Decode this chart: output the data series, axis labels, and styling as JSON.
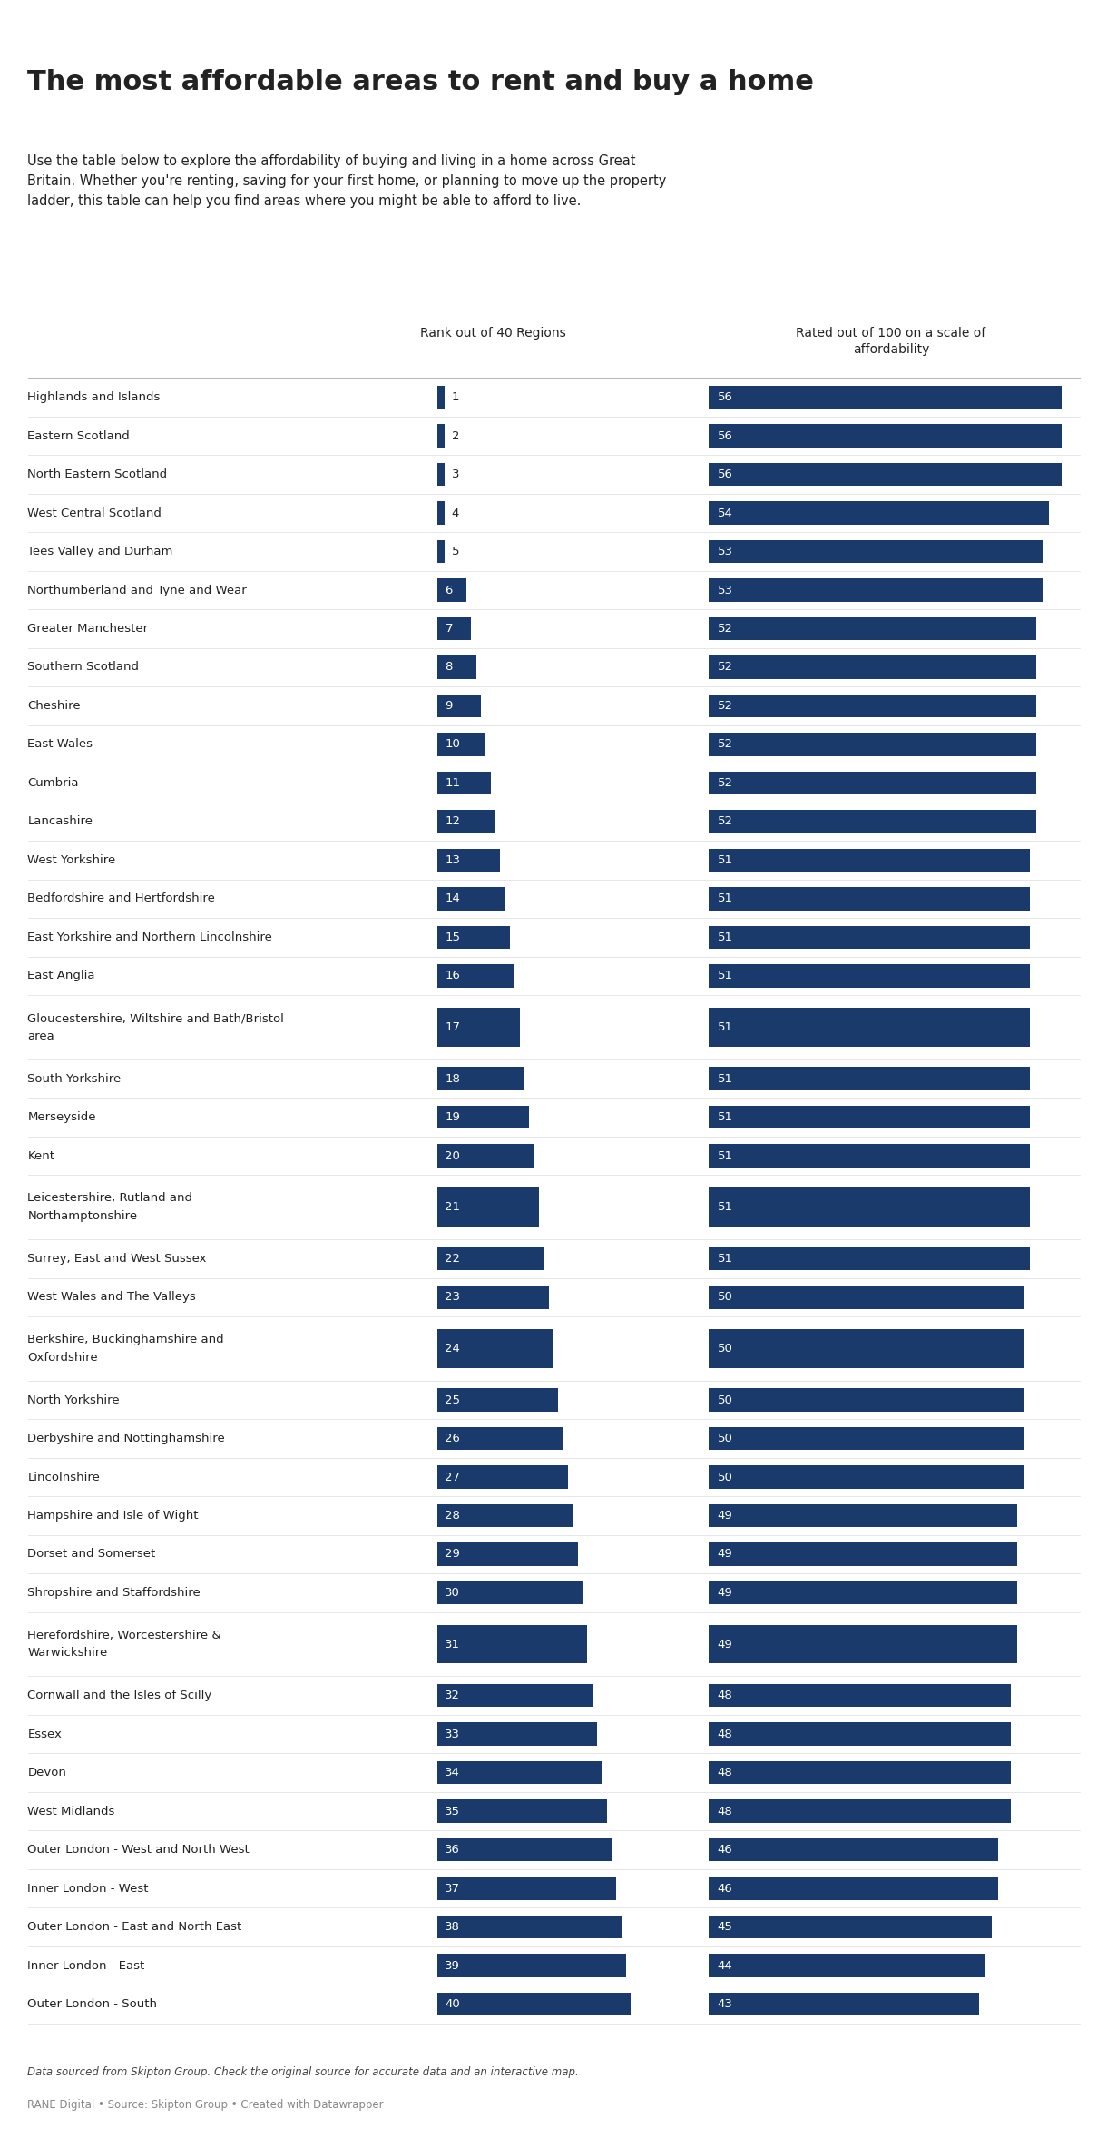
{
  "title": "The most affordable areas to rent and buy a home",
  "subtitle": "Use the table below to explore the affordability of buying and living in a home across Great\nBritain. Whether you're renting, saving for your first home, or planning to move up the property\nladder, this table can help you find areas where you might be able to afford to live.",
  "col1_header": "Rank out of 40 Regions",
  "col2_header": "Rated out of 100 on a scale of\naffordability",
  "footer_line1": "Data sourced from Skipton Group. Check the original source for accurate data and an interactive map.",
  "footer_line2": "RANE Digital • Source: Skipton Group • Created with Datawrapper",
  "bar_color": "#1a3a6b",
  "text_color": "#222222",
  "bg_color": "#ffffff",
  "regions": [
    "Highlands and Islands",
    "Eastern Scotland",
    "North Eastern Scotland",
    "West Central Scotland",
    "Tees Valley and Durham",
    "Northumberland and Tyne and Wear",
    "Greater Manchester",
    "Southern Scotland",
    "Cheshire",
    "East Wales",
    "Cumbria",
    "Lancashire",
    "West Yorkshire",
    "Bedfordshire and Hertfordshire",
    "East Yorkshire and Northern Lincolnshire",
    "East Anglia",
    "Gloucestershire, Wiltshire and Bath/Bristol\narea",
    "South Yorkshire",
    "Merseyside",
    "Kent",
    "Leicestershire, Rutland and\nNorthamptonshire",
    "Surrey, East and West Sussex",
    "West Wales and The Valleys",
    "Berkshire, Buckinghamshire and\nOxfordshire",
    "North Yorkshire",
    "Derbyshire and Nottinghamshire",
    "Lincolnshire",
    "Hampshire and Isle of Wight",
    "Dorset and Somerset",
    "Shropshire and Staffordshire",
    "Herefordshire, Worcestershire &\nWarwickshire",
    "Cornwall and the Isles of Scilly",
    "Essex",
    "Devon",
    "West Midlands",
    "Outer London - West and North West",
    "Inner London - West",
    "Outer London - East and North East",
    "Inner London - East",
    "Outer London - South"
  ],
  "ranks": [
    1,
    2,
    3,
    4,
    5,
    6,
    7,
    8,
    9,
    10,
    11,
    12,
    13,
    14,
    15,
    16,
    17,
    18,
    19,
    20,
    21,
    22,
    23,
    24,
    25,
    26,
    27,
    28,
    29,
    30,
    31,
    32,
    33,
    34,
    35,
    36,
    37,
    38,
    39,
    40
  ],
  "scores": [
    56,
    56,
    56,
    54,
    53,
    53,
    52,
    52,
    52,
    52,
    52,
    52,
    51,
    51,
    51,
    51,
    51,
    51,
    51,
    51,
    51,
    51,
    50,
    50,
    50,
    50,
    50,
    49,
    49,
    49,
    49,
    48,
    48,
    48,
    48,
    46,
    46,
    45,
    44,
    43
  ]
}
